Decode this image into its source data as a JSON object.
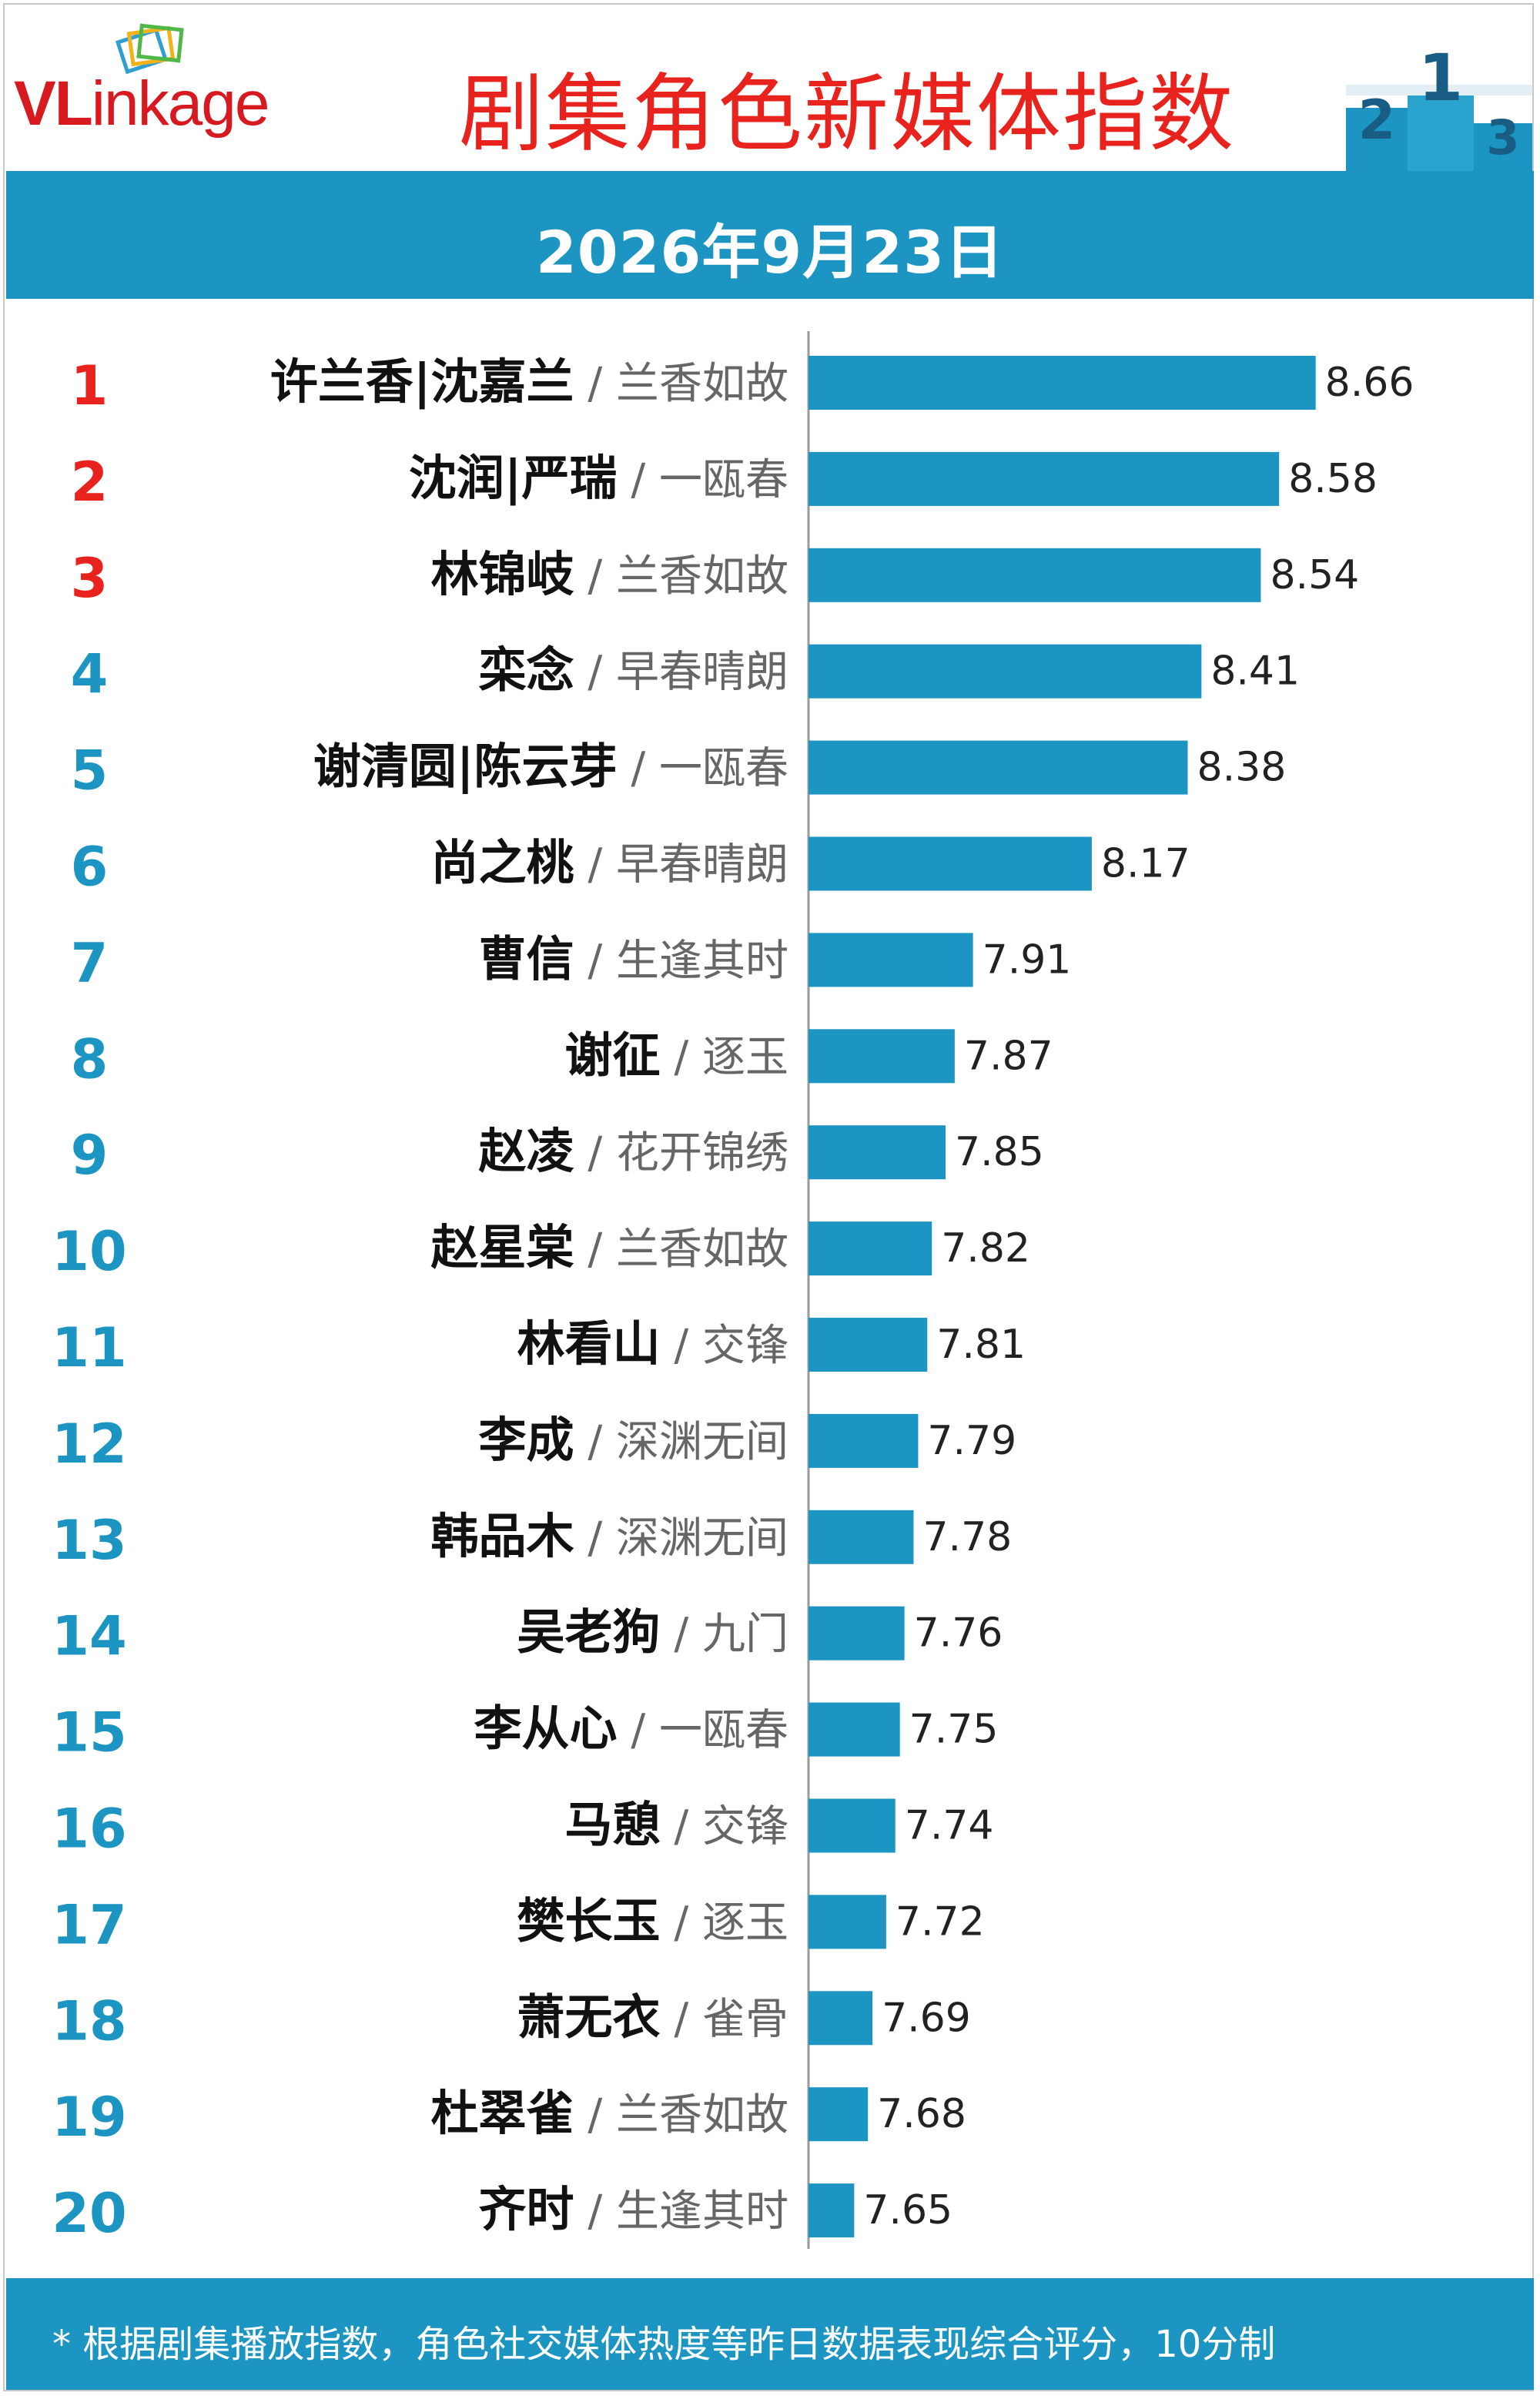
{
  "header": {
    "logo_text_v": "VL",
    "logo_text_rest": "inkage",
    "title": "剧集角色新媒体指数",
    "date": "2026年9月23日",
    "podium_digits": [
      "2",
      "1",
      "3"
    ]
  },
  "colors": {
    "bar": "#1c95c3",
    "top_rank": "#e8231e",
    "rank": "#1c95c3",
    "band": "#1c95c3"
  },
  "chart_data": {
    "type": "bar",
    "orientation": "horizontal",
    "categories": [
      "许兰香|沈嘉兰",
      "沈润|严瑞",
      "林锦岐",
      "栾念",
      "谢清圆|陈云芽",
      "尚之桃",
      "曹信",
      "谢征",
      "赵凌",
      "赵星棠",
      "林看山",
      "李成",
      "韩品木",
      "吴老狗",
      "李从心",
      "马憩",
      "樊长玉",
      "萧无衣",
      "杜翠雀",
      "齐时"
    ],
    "shows": [
      "兰香如故",
      "一瓯春",
      "兰香如故",
      "早春晴朗",
      "一瓯春",
      "早春晴朗",
      "生逢其时",
      "逐玉",
      "花开锦绣",
      "兰香如故",
      "交锋",
      "深渊无间",
      "深渊无间",
      "九门",
      "一瓯春",
      "交锋",
      "逐玉",
      "雀骨",
      "兰香如故",
      "生逢其时"
    ],
    "ranks": [
      "1",
      "2",
      "3",
      "4",
      "5",
      "6",
      "7",
      "8",
      "9",
      "10",
      "11",
      "12",
      "13",
      "14",
      "15",
      "16",
      "17",
      "18",
      "19",
      "20"
    ],
    "values": [
      8.66,
      8.58,
      8.54,
      8.41,
      8.38,
      8.17,
      7.91,
      7.87,
      7.85,
      7.82,
      7.81,
      7.79,
      7.78,
      7.76,
      7.75,
      7.74,
      7.72,
      7.69,
      7.68,
      7.65
    ],
    "value_labels": [
      "8.66",
      "8.58",
      "8.54",
      "8.41",
      "8.38",
      "8.17",
      "7.91",
      "7.87",
      "7.85",
      "7.82",
      "7.81",
      "7.79",
      "7.78",
      "7.76",
      "7.75",
      "7.74",
      "7.72",
      "7.69",
      "7.68",
      "7.65"
    ],
    "xlim": [
      7.55,
      8.76
    ],
    "title": "剧集角色新媒体指数"
  },
  "footer": {
    "note": "* 根据剧集播放指数，角色社交媒体热度等昨日数据表现综合评分，10分制"
  }
}
